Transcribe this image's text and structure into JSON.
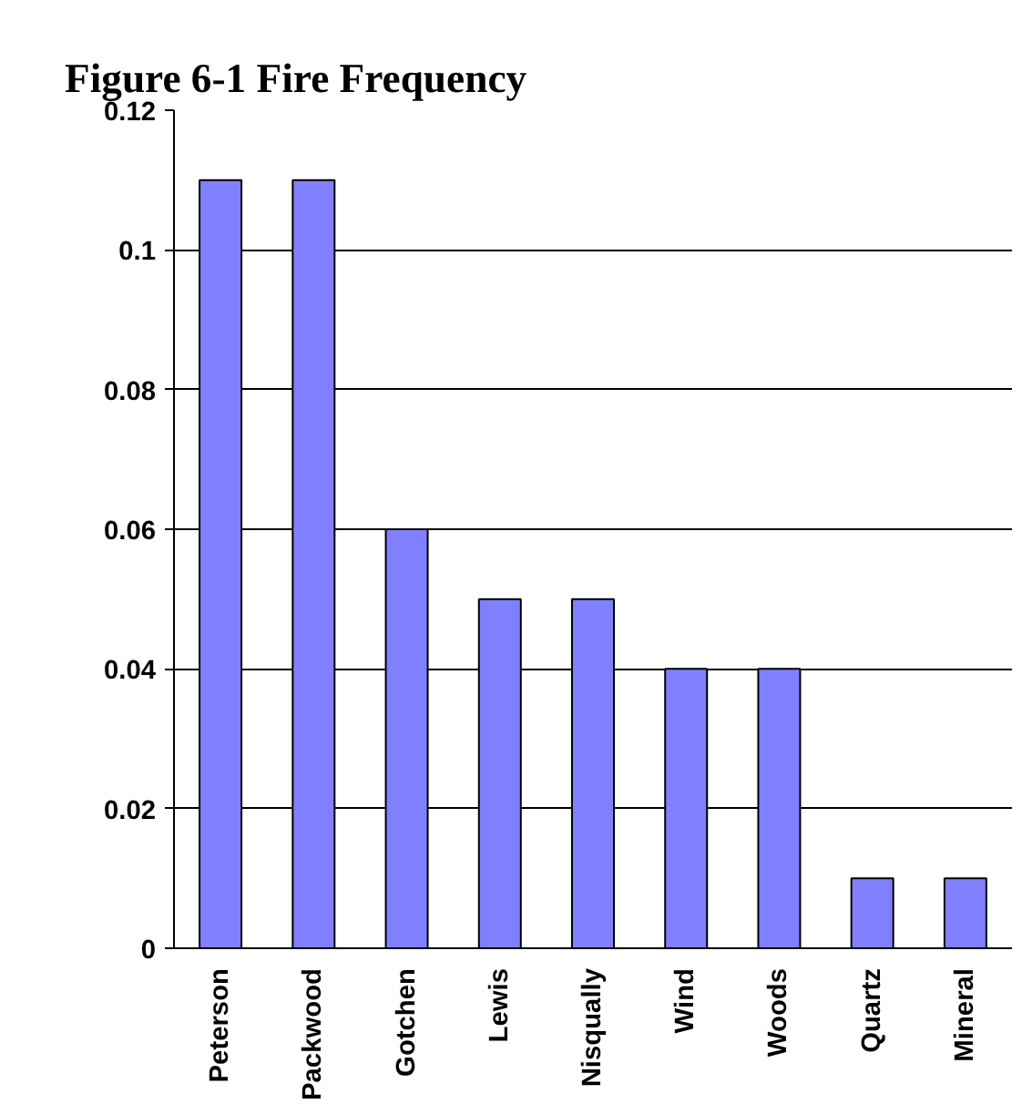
{
  "chart_data": {
    "type": "bar",
    "title": "Figure 6-1  Fire Frequency",
    "categories": [
      "Peterson",
      "Packwood",
      "Gotchen",
      "Lewis",
      "Nisqually",
      "Wind",
      "Woods",
      "Quartz",
      "Mineral"
    ],
    "values": [
      0.11,
      0.11,
      0.06,
      0.05,
      0.05,
      0.04,
      0.04,
      0.01,
      0.01
    ],
    "color": "#8080ff",
    "ylim": [
      0,
      0.12
    ],
    "yticks": [
      0,
      0.02,
      0.04,
      0.06,
      0.08,
      0.1,
      0.12
    ],
    "grid": "y"
  }
}
